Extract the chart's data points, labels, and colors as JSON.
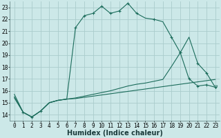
{
  "xlabel": "Humidex (Indice chaleur)",
  "bg_color": "#cce8e8",
  "grid_color": "#aacccc",
  "line_color": "#1a6b5a",
  "xlim": [
    -0.5,
    23.5
  ],
  "ylim": [
    13.5,
    23.5
  ],
  "yticks": [
    14,
    15,
    16,
    17,
    18,
    19,
    20,
    21,
    22,
    23
  ],
  "xticks": [
    0,
    1,
    2,
    3,
    4,
    5,
    6,
    7,
    8,
    9,
    10,
    11,
    12,
    13,
    14,
    15,
    16,
    17,
    18,
    19,
    20,
    21,
    22,
    23
  ],
  "curve1_x": [
    0,
    1,
    2,
    3,
    4,
    5,
    6,
    7,
    8,
    9,
    10,
    11,
    12,
    13,
    14,
    15,
    16,
    17,
    18,
    19,
    20,
    21,
    22,
    23
  ],
  "curve1_y": [
    15.7,
    14.2,
    13.8,
    14.3,
    15.0,
    15.2,
    15.3,
    21.3,
    22.3,
    22.5,
    23.1,
    22.5,
    22.7,
    23.35,
    22.5,
    22.1,
    22.0,
    21.8,
    20.5,
    19.2,
    20.5,
    18.3,
    17.5,
    16.3
  ],
  "curve2_x": [
    0,
    1,
    2,
    3,
    4,
    5,
    6,
    7,
    8,
    9,
    10,
    11,
    12,
    13,
    14,
    15,
    16,
    17,
    18,
    19,
    20,
    21,
    22,
    23
  ],
  "curve2_y": [
    15.5,
    14.2,
    13.8,
    14.3,
    15.0,
    15.2,
    15.3,
    15.4,
    15.55,
    15.7,
    15.85,
    16.0,
    16.2,
    16.4,
    16.55,
    16.65,
    16.8,
    16.95,
    18.05,
    19.2,
    17.0,
    16.4,
    16.5,
    16.3
  ],
  "curve3_x": [
    0,
    1,
    2,
    3,
    4,
    5,
    6,
    7,
    8,
    9,
    10,
    11,
    12,
    13,
    14,
    15,
    16,
    17,
    18,
    19,
    20,
    21,
    22,
    23
  ],
  "curve3_y": [
    15.4,
    14.2,
    13.8,
    14.3,
    15.0,
    15.2,
    15.3,
    15.35,
    15.45,
    15.55,
    15.65,
    15.75,
    15.85,
    15.95,
    16.05,
    16.15,
    16.25,
    16.35,
    16.45,
    16.55,
    16.65,
    16.75,
    16.85,
    16.95
  ],
  "curve1_markers": [
    1,
    2,
    3,
    7,
    8,
    9,
    10,
    11,
    12,
    13,
    14,
    16,
    18,
    19,
    21,
    22,
    23
  ],
  "curve2_markers_tri": [
    23
  ],
  "curve2_markers_plus": [
    19,
    20,
    21,
    22
  ],
  "axis_fontsize": 6,
  "tick_fontsize": 5.5,
  "xlabel_fontsize": 7
}
